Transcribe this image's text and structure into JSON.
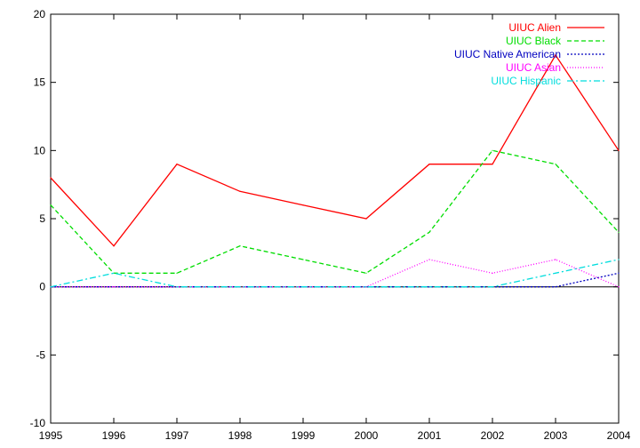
{
  "chart_data": {
    "type": "line",
    "x": [
      1995,
      1996,
      1997,
      1998,
      1999,
      2000,
      2001,
      2002,
      2003,
      2004
    ],
    "xlim": [
      1995,
      2004
    ],
    "ylim": [
      -10,
      20
    ],
    "x_ticks": [
      "1995",
      "1996",
      "1997",
      "1998",
      "1999",
      "2000",
      "2001",
      "2002",
      "2003",
      "2004"
    ],
    "y_ticks": [
      "-10",
      "-5",
      "0",
      "5",
      "10",
      "15",
      "20"
    ],
    "grid": false,
    "legend_position": "top-right",
    "series": [
      {
        "name": "UIUC Alien",
        "color": "#ff0000",
        "dash": "solid",
        "values": [
          8,
          3,
          9,
          7,
          6,
          5,
          9,
          9,
          17,
          10
        ]
      },
      {
        "name": "UIUC Black",
        "color": "#00dd00",
        "dash": "dashed",
        "values": [
          6,
          1,
          1,
          3,
          2,
          1,
          4,
          10,
          9,
          4
        ]
      },
      {
        "name": "UIUC Native American",
        "color": "#0000c0",
        "dash": "dotted",
        "values": [
          0,
          0,
          0,
          0,
          0,
          0,
          0,
          0,
          0,
          1
        ]
      },
      {
        "name": "UIUC Asian",
        "color": "#ff00ff",
        "dash": "fine-dotted",
        "values": [
          0,
          0,
          0,
          0,
          0,
          0,
          2,
          1,
          2,
          0
        ]
      },
      {
        "name": "UIUC Hispanic",
        "color": "#00dddd",
        "dash": "dash-dot",
        "values": [
          0,
          1,
          0,
          0,
          0,
          0,
          0,
          0,
          1,
          2
        ]
      }
    ]
  }
}
